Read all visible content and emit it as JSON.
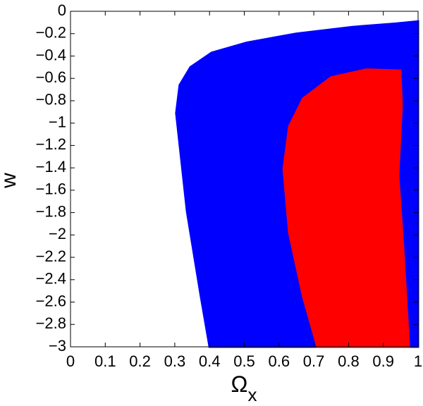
{
  "chart_data": {
    "type": "region",
    "xlabel": {
      "main": "Ω",
      "sub": "x"
    },
    "ylabel": "w",
    "xlim": [
      0,
      1
    ],
    "ylim": [
      -3,
      0
    ],
    "xticks": [
      0,
      0.1,
      0.2,
      0.3,
      0.4,
      0.5,
      0.6,
      0.7,
      0.8,
      0.9,
      1
    ],
    "yticks": [
      0,
      -0.2,
      -0.4,
      -0.6,
      -0.8,
      -1,
      -1.2,
      -1.4,
      -1.6,
      -1.8,
      -2,
      -2.2,
      -2.4,
      -2.6,
      -2.8,
      -3
    ],
    "series": [
      {
        "color": "#0000ff",
        "x": [
          0.4,
          0.375,
          0.335,
          0.304,
          0.314,
          0.345,
          0.406,
          0.507,
          0.649,
          0.811,
          0.933,
          1.0,
          1.0
        ],
        "y": [
          -3,
          -2.55,
          -1.79,
          -0.91,
          -0.66,
          -0.5,
          -0.37,
          -0.28,
          -0.2,
          -0.14,
          -0.11,
          -0.09,
          -3
        ]
      },
      {
        "color": "#ff0000",
        "x": [
          0.71,
          0.669,
          0.629,
          0.613,
          0.629,
          0.669,
          0.75,
          0.852,
          0.949,
          0.953,
          0.943,
          0.957,
          0.974
        ],
        "y": [
          -3,
          -2.55,
          -1.98,
          -1.41,
          -1.03,
          -0.78,
          -0.59,
          -0.52,
          -0.53,
          -0.84,
          -1.47,
          -2.1,
          -3
        ]
      }
    ]
  }
}
